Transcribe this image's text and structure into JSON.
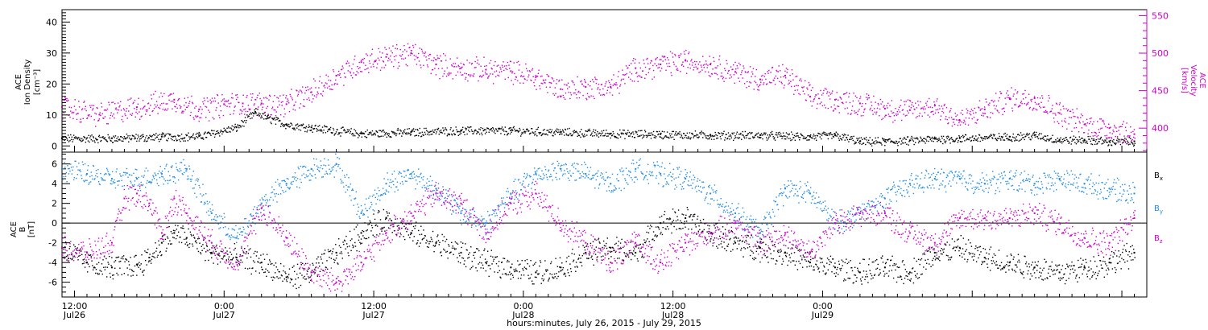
{
  "chart_data": [
    {
      "type": "scatter",
      "panel": "ion-density-velocity",
      "xlim": [
        0,
        87
      ],
      "left_axis": {
        "label_lines": [
          "ACE",
          "Ion Density",
          "[cm⁻³]"
        ],
        "ylim": [
          -2,
          44
        ],
        "ticks": [
          0,
          10,
          20,
          30,
          40
        ],
        "tick_labels": [
          "0",
          "10",
          "20",
          "30",
          "40"
        ]
      },
      "right_axis": {
        "label_lines": [
          "ACE",
          "Velocity",
          "[km/s]"
        ],
        "ylim": [
          368,
          558
        ],
        "ticks": [
          400,
          450,
          500,
          550
        ],
        "tick_labels": [
          "400",
          "450",
          "500",
          "550"
        ]
      },
      "series": [
        {
          "key": "density",
          "axis": "left",
          "color": "#000000",
          "x": [
            0,
            4,
            8,
            11,
            14,
            15.5,
            16.5,
            18,
            20,
            24,
            28,
            32,
            36,
            40,
            44,
            48,
            52,
            56,
            60,
            62,
            64,
            66,
            68,
            70,
            72,
            76,
            78,
            80,
            82,
            84,
            86
          ],
          "y": [
            2.5,
            2.5,
            3,
            3.2,
            6,
            11,
            9,
            7,
            6,
            4,
            4.5,
            5,
            5,
            4.5,
            4,
            3.8,
            3.5,
            3.5,
            3,
            3.5,
            1.5,
            1.5,
            1.8,
            2.3,
            2.5,
            3,
            3.5,
            2,
            2,
            1.5,
            1.5
          ]
        },
        {
          "key": "velocity",
          "axis": "right",
          "color": "#cc00cc",
          "x": [
            0,
            3,
            6,
            9,
            11,
            13,
            14.5,
            16,
            18,
            20,
            22,
            24,
            26,
            28,
            30,
            32,
            34,
            36,
            38,
            40,
            42,
            44,
            46,
            48,
            50,
            52,
            54,
            56,
            58,
            60,
            62,
            64,
            66,
            68,
            70,
            72,
            74,
            76,
            78,
            80,
            82,
            84,
            86
          ],
          "y": [
            428,
            418,
            428,
            438,
            425,
            432,
            433,
            433,
            432,
            448,
            470,
            488,
            495,
            500,
            485,
            480,
            478,
            476,
            468,
            452,
            455,
            455,
            480,
            485,
            490,
            485,
            475,
            465,
            470,
            442,
            438,
            433,
            426,
            424,
            430,
            410,
            425,
            440,
            440,
            420,
            405,
            400,
            392
          ]
        }
      ]
    },
    {
      "type": "scatter",
      "panel": "magnetic-field",
      "xlim": [
        0,
        87
      ],
      "ylabel_lines": [
        "ACE",
        "B",
        "[nT]"
      ],
      "ylim": [
        -7.5,
        7.2
      ],
      "ticks": [
        -6,
        -4,
        -2,
        0,
        2,
        4,
        6
      ],
      "tick_labels": [
        "-6",
        "-4",
        "-2",
        "0",
        "2",
        "4",
        "6"
      ],
      "zero_line": true,
      "legend": [
        "Bx",
        "By",
        "Bz"
      ],
      "xticks": [
        {
          "x": 1,
          "labels": [
            "12:00",
            "Jul26"
          ]
        },
        {
          "x": 13,
          "labels": [
            "0:00",
            "Jul27"
          ]
        },
        {
          "x": 25,
          "labels": [
            "12:00",
            "Jul27"
          ]
        },
        {
          "x": 37,
          "labels": [
            "0:00",
            "Jul28"
          ]
        },
        {
          "x": 49,
          "labels": [
            "12:00",
            "Jul28"
          ]
        },
        {
          "x": 61,
          "labels": [
            "0:00",
            "Jul29"
          ]
        }
      ],
      "xlabel": "hours:minutes, July 26, 2015 - July 29, 2015",
      "series": [
        {
          "key": "bx",
          "name": "Bx",
          "color": "#000000",
          "x": [
            0,
            2,
            4,
            6,
            7,
            8,
            9,
            10,
            12,
            14,
            16,
            18,
            20,
            22,
            24,
            26,
            28,
            30,
            32,
            34,
            36,
            38,
            40,
            42,
            44,
            46,
            48,
            50,
            52,
            54,
            56,
            58,
            60,
            62,
            64,
            66,
            68,
            70,
            72,
            74,
            76,
            78,
            80,
            82,
            84,
            86
          ],
          "y": [
            -2.5,
            -4,
            -4.5,
            -4.2,
            -3.5,
            -2,
            -1,
            -1.5,
            -3,
            -3.5,
            -4,
            -5.5,
            -5,
            -3,
            -1,
            0.5,
            -1,
            -2,
            -3,
            -4,
            -4.5,
            -5,
            -4.5,
            -3,
            -2.5,
            -3,
            0,
            0.5,
            -1,
            -2,
            -2.5,
            -3,
            -4,
            -4.5,
            -5,
            -4.5,
            -5,
            -3,
            -2.5,
            -3.5,
            -4,
            -4.5,
            -5,
            -4.5,
            -4,
            -3
          ]
        },
        {
          "key": "by",
          "name": "By",
          "color": "#1f8ce6",
          "x": [
            0,
            2,
            4,
            6,
            8,
            10,
            12,
            14,
            16,
            18,
            20,
            22,
            24,
            26,
            28,
            30,
            32,
            34,
            36,
            38,
            40,
            42,
            44,
            46,
            48,
            50,
            52,
            54,
            56,
            58,
            60,
            62,
            64,
            66,
            68,
            70,
            72,
            74,
            76,
            78,
            80,
            82,
            84,
            86
          ],
          "y": [
            5.5,
            5,
            4.5,
            4.5,
            5,
            5.5,
            1,
            -1.5,
            2,
            4,
            5.5,
            6,
            1,
            4,
            5,
            3.5,
            1,
            0,
            3,
            5,
            5.5,
            5,
            4,
            5.5,
            5,
            4.5,
            3,
            1,
            -1,
            3.5,
            3,
            0,
            1,
            2.5,
            4,
            4.5,
            4.5,
            4,
            4.5,
            4,
            4.5,
            4,
            3.5,
            3
          ]
        },
        {
          "key": "bz",
          "name": "Bz",
          "color": "#cc00cc",
          "x": [
            0,
            2,
            4,
            5,
            6,
            7,
            8,
            9,
            10,
            12,
            14,
            16,
            18,
            20,
            22,
            24,
            26,
            28,
            30,
            32,
            34,
            36,
            38,
            40,
            42,
            44,
            46,
            48,
            50,
            52,
            54,
            56,
            58,
            60,
            62,
            64,
            66,
            68,
            70,
            72,
            74,
            76,
            78,
            80,
            82,
            84,
            86
          ],
          "y": [
            -2.5,
            -3,
            -2,
            2.5,
            3,
            2,
            -1,
            2.5,
            1,
            -2,
            -4,
            1.5,
            -1.5,
            -5,
            -6,
            -4,
            -1,
            1,
            3,
            2,
            -1,
            2,
            3,
            0,
            -2,
            -4,
            -2,
            -4,
            -2,
            -1,
            0,
            -2,
            -1,
            -3,
            0,
            1,
            1,
            -1,
            -2,
            0.5,
            0.5,
            0.5,
            1,
            0,
            -1.5,
            -2,
            0.5
          ]
        }
      ]
    }
  ]
}
